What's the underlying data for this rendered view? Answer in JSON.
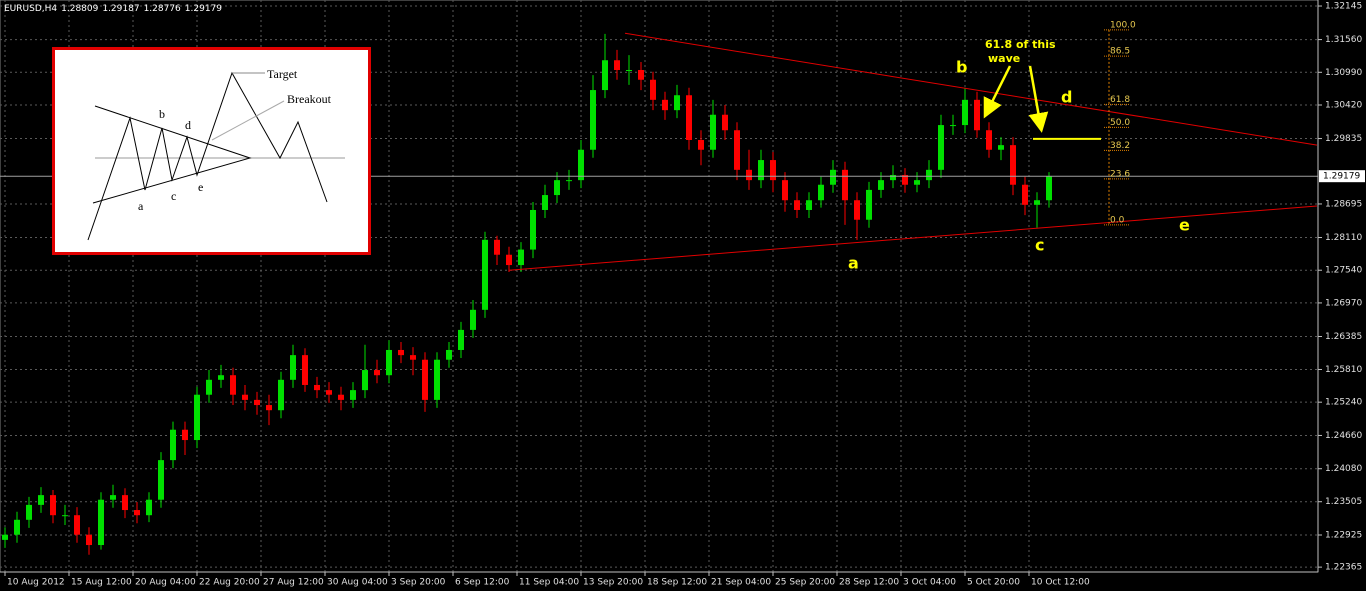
{
  "chart_data": {
    "type": "candlestick",
    "title": "EURUSD,H4",
    "ohlc": [
      1.28809,
      1.29187,
      1.28776,
      1.29179
    ],
    "current_price": 1.29179,
    "up_color": "#00e000",
    "down_color": "#ff0000",
    "grid": true,
    "xlim": [
      -1.25,
      328.25
    ],
    "ylim": [
      1.2228,
      1.3225
    ],
    "xticks": [
      {
        "value": 0,
        "label": "10 Aug 2012"
      },
      {
        "value": 16,
        "label": "15 Aug 12:00"
      },
      {
        "value": 32,
        "label": "20 Aug 04:00"
      },
      {
        "value": 48,
        "label": "22 Aug 20:00"
      },
      {
        "value": 64,
        "label": "27 Aug 12:00"
      },
      {
        "value": 80,
        "label": "30 Aug 04:00"
      },
      {
        "value": 96,
        "label": "3 Sep 20:00"
      },
      {
        "value": 112,
        "label": "6 Sep 12:00"
      },
      {
        "value": 128,
        "label": "11 Sep 04:00"
      },
      {
        "value": 144,
        "label": "13 Sep 20:00"
      },
      {
        "value": 160,
        "label": "18 Sep 12:00"
      },
      {
        "value": 176,
        "label": "21 Sep 04:00"
      },
      {
        "value": 192,
        "label": "25 Sep 20:00"
      },
      {
        "value": 208,
        "label": "28 Sep 12:00"
      },
      {
        "value": 224,
        "label": "3 Oct 04:00"
      },
      {
        "value": 240,
        "label": "5 Oct 20:00"
      },
      {
        "value": 256,
        "label": "10 Oct 12:00"
      }
    ],
    "yticks": [
      1.32145,
      {
        "value": 1.3156,
        "label": "1.31560"
      },
      {
        "value": 1.3099,
        "label": "1.30990"
      },
      {
        "value": 1.3042,
        "label": "1.30420"
      },
      1.29835,
      1.28695,
      {
        "value": 1.2811,
        "label": "1.28110"
      },
      {
        "value": 1.2754,
        "label": "1.27540"
      },
      {
        "value": 1.2697,
        "label": "1.26970"
      },
      1.26385,
      {
        "value": 1.2581,
        "label": "1.25810"
      },
      {
        "value": 1.2524,
        "label": "1.25240"
      },
      {
        "value": 1.2466,
        "label": "1.24660"
      },
      {
        "value": 1.2408,
        "label": "1.24080"
      },
      1.23505,
      1.22925,
      1.22365
    ],
    "x": [
      0,
      3,
      6,
      9,
      12,
      15,
      18,
      21,
      24,
      27,
      30,
      33,
      36,
      39,
      42,
      45,
      48,
      51,
      54,
      57,
      60,
      63,
      66,
      69,
      72,
      75,
      78,
      81,
      84,
      87,
      90,
      93,
      96,
      99,
      102,
      105,
      108,
      111,
      114,
      117,
      120,
      123,
      126,
      129,
      132,
      135,
      138,
      141,
      144,
      147,
      150,
      153,
      156,
      159,
      162,
      165,
      168,
      171,
      174,
      177,
      180,
      183,
      186,
      189,
      192,
      195,
      198,
      201,
      204,
      207,
      210,
      213,
      216,
      219,
      222,
      225,
      228,
      231,
      234,
      237,
      240,
      243,
      246,
      249,
      252,
      255,
      258,
      261
    ],
    "open": [
      1.2284,
      1.2293,
      1.2319,
      1.2345,
      1.2362,
      1.2327,
      1.2327,
      1.2293,
      1.2275,
      1.2354,
      1.2362,
      1.2336,
      1.2327,
      1.2354,
      1.2423,
      1.2476,
      1.2458,
      1.2537,
      1.2563,
      1.2571,
      1.2537,
      1.2528,
      1.2519,
      1.251,
      1.2563,
      1.2606,
      1.2554,
      1.2545,
      1.2537,
      1.2528,
      1.2545,
      1.258,
      1.2571,
      1.2615,
      1.2606,
      1.2598,
      1.2528,
      1.2598,
      1.2615,
      1.265,
      1.2685,
      1.2807,
      1.2781,
      1.2763,
      1.279,
      1.2859,
      1.2885,
      1.2911,
      1.2911,
      1.2964,
      1.3068,
      1.312,
      1.3103,
      1.3103,
      1.3086,
      1.3051,
      1.3033,
      1.3059,
      1.2981,
      1.2964,
      1.3025,
      1.2998,
      1.2929,
      1.2911,
      1.2946,
      1.2911,
      1.2876,
      1.2859,
      1.2876,
      1.2903,
      1.2929,
      1.2876,
      1.2842,
      1.2894,
      1.2911,
      1.292,
      1.2903,
      1.2911,
      1.2929,
      1.3007,
      1.3007,
      1.3051,
      1.2998,
      1.2964,
      1.2972,
      1.2903,
      1.2868,
      1.2876
    ],
    "high": [
      1.2306,
      1.2333,
      1.2359,
      1.2376,
      1.2371,
      1.2345,
      1.2341,
      1.2306,
      1.2367,
      1.238,
      1.2374,
      1.235,
      1.2367,
      1.2437,
      1.249,
      1.249,
      1.2551,
      1.258,
      1.2589,
      1.2584,
      1.2554,
      1.2542,
      1.2537,
      1.2577,
      1.2624,
      1.2618,
      1.2568,
      1.2559,
      1.2551,
      1.2559,
      1.2624,
      1.2598,
      1.2632,
      1.2629,
      1.262,
      1.2611,
      1.2611,
      1.2629,
      1.2664,
      1.2702,
      1.2821,
      1.2814,
      1.2795,
      1.2803,
      1.2873,
      1.2903,
      1.2925,
      1.2929,
      1.2981,
      1.3094,
      1.3166,
      1.3138,
      1.3129,
      1.3117,
      1.31,
      1.3065,
      1.3077,
      1.3072,
      1.2998,
      1.3051,
      1.3042,
      1.3012,
      1.2964,
      1.2964,
      1.296,
      1.2925,
      1.289,
      1.289,
      1.2917,
      1.2946,
      1.2943,
      1.289,
      1.2908,
      1.2925,
      1.2937,
      1.2932,
      1.2925,
      1.2946,
      1.3025,
      1.3025,
      1.3072,
      1.3065,
      1.3012,
      1.2986,
      1.2986,
      1.2917,
      1.289,
      1.2925
    ],
    "low": [
      1.227,
      1.2279,
      1.2305,
      1.2331,
      1.2313,
      1.231,
      1.2279,
      1.2258,
      1.2267,
      1.234,
      1.2322,
      1.2313,
      1.2315,
      1.234,
      1.2409,
      1.2432,
      1.2444,
      1.2523,
      1.2549,
      1.2519,
      1.251,
      1.2502,
      1.2484,
      1.2496,
      1.2549,
      1.2542,
      1.2531,
      1.2523,
      1.251,
      1.2514,
      1.2531,
      1.2557,
      1.2557,
      1.2592,
      1.2571,
      1.2507,
      1.2514,
      1.2584,
      1.2601,
      1.2636,
      1.2671,
      1.2763,
      1.2751,
      1.2751,
      1.2775,
      1.2845,
      1.2871,
      1.2894,
      1.2897,
      1.295,
      1.3054,
      1.3086,
      1.3077,
      1.3068,
      1.3033,
      1.3016,
      1.3019,
      1.2964,
      1.2937,
      1.295,
      1.2981,
      1.2911,
      1.2894,
      1.2897,
      1.289,
      1.2856,
      1.2845,
      1.2845,
      1.2863,
      1.2889,
      1.2833,
      1.2807,
      1.2828,
      1.288,
      1.2897,
      1.2889,
      1.289,
      1.2897,
      1.2915,
      1.299,
      1.2993,
      1.2985,
      1.295,
      1.2946,
      1.2885,
      1.285,
      1.2828,
      1.2863
    ],
    "close": [
      1.2293,
      1.2319,
      1.2345,
      1.2362,
      1.2327,
      1.2327,
      1.2293,
      1.2275,
      1.2354,
      1.2362,
      1.2336,
      1.2327,
      1.2354,
      1.2423,
      1.2476,
      1.2458,
      1.2537,
      1.2563,
      1.2571,
      1.2537,
      1.2528,
      1.2519,
      1.251,
      1.2563,
      1.2606,
      1.2554,
      1.2545,
      1.2537,
      1.2528,
      1.2545,
      1.258,
      1.2571,
      1.2615,
      1.2606,
      1.2598,
      1.2528,
      1.2598,
      1.2615,
      1.265,
      1.2685,
      1.2807,
      1.2781,
      1.2763,
      1.279,
      1.2859,
      1.2885,
      1.2911,
      1.2911,
      1.2964,
      1.3068,
      1.312,
      1.3103,
      1.3103,
      1.3086,
      1.3051,
      1.3033,
      1.3059,
      1.2981,
      1.2964,
      1.3025,
      1.2998,
      1.2929,
      1.2911,
      1.2946,
      1.2911,
      1.2876,
      1.2859,
      1.2876,
      1.2903,
      1.2929,
      1.2876,
      1.2842,
      1.2894,
      1.2911,
      1.292,
      1.2903,
      1.2911,
      1.2929,
      1.3007,
      1.3007,
      1.3051,
      1.2998,
      1.2964,
      1.2972,
      1.2903,
      1.2868,
      1.2876,
      1.2918
    ],
    "trendlines": [
      {
        "x": [
          155,
          328
        ],
        "y": [
          1.3167,
          1.2972
        ]
      },
      {
        "x": [
          126,
          328
        ],
        "y": [
          1.2754,
          1.2866
        ]
      }
    ],
    "trendline_color": "#e00000",
    "fibonacci": {
      "x": [
        276,
        281
      ],
      "high": 1.3173,
      "low": 1.2833,
      "color": "#e08000",
      "levels": [
        {
          "value": 100,
          "label": "100.0"
        },
        86.5,
        61.8,
        {
          "value": 50,
          "label": "50.0"
        },
        38.2,
        23.6,
        {
          "value": 0,
          "label": "0.0"
        }
      ]
    },
    "level_line": {
      "x": [
        257,
        274
      ],
      "y": 1.2983,
      "color": "#ffff00"
    },
    "annotations": {
      "waves": [
        "a",
        "b",
        "c",
        "d",
        "e"
      ],
      "note": [
        "61.8 of this",
        "wave"
      ]
    }
  },
  "inset": {
    "target": "Target",
    "breakout": "Breakout",
    "a": "a",
    "b": "b",
    "c": "c",
    "d": "d",
    "e": "e"
  }
}
